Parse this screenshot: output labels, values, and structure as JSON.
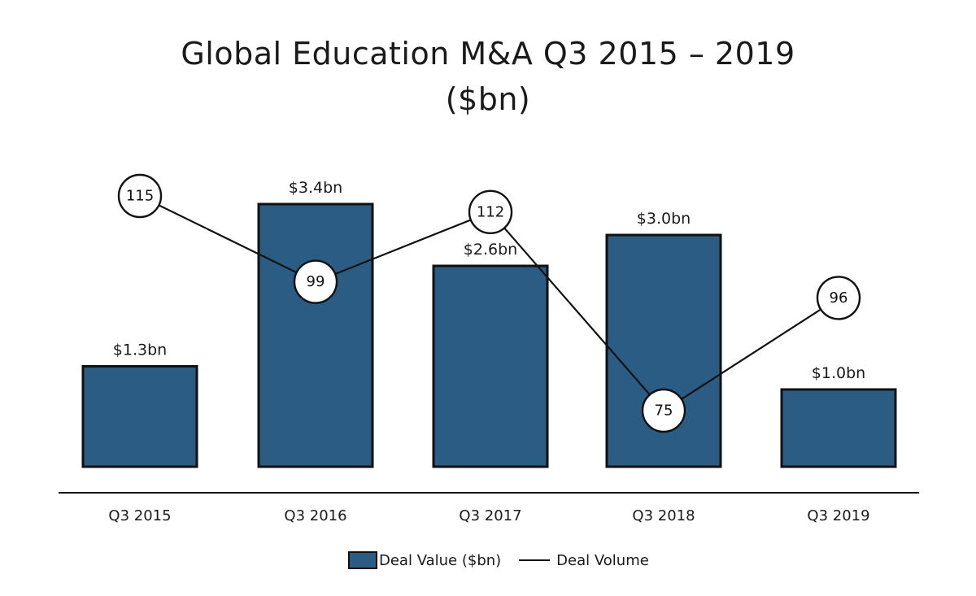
{
  "chart_data": {
    "type": "bar",
    "title_line1": "Global Education M&A Q3 2015 – 2019",
    "title_line2": "($bn)",
    "categories": [
      "Q3 2015",
      "Q3 2016",
      "Q3 2017",
      "Q3 2018",
      "Q3 2019"
    ],
    "series": [
      {
        "name": "Deal Value ($bn)",
        "type": "bar",
        "values": [
          1.3,
          3.4,
          2.6,
          3.0,
          1.0
        ],
        "labels": [
          "$1.3bn",
          "$3.4bn",
          "$2.6bn",
          "$3.0bn",
          "$1.0bn"
        ],
        "color": "#2b5c84"
      },
      {
        "name": "Deal Volume",
        "type": "line",
        "values": [
          115,
          99,
          112,
          75,
          96
        ],
        "color": "#111111"
      }
    ],
    "xlabel": "",
    "ylabel": "",
    "grid": false,
    "legend": "bottom-center"
  }
}
